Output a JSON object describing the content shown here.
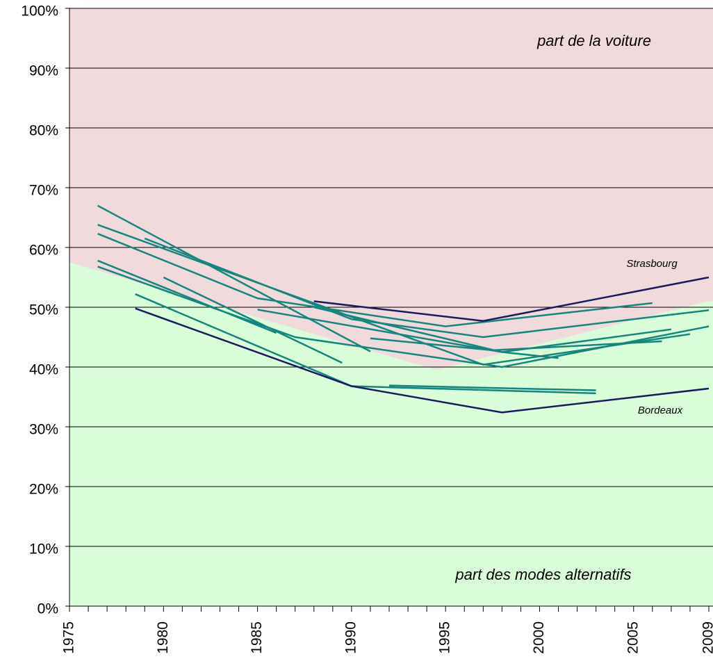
{
  "chart_data": {
    "type": "line",
    "annotations": [
      "part de la voiture",
      "part des modes alternatifs"
    ],
    "xlim": [
      1975,
      2009
    ],
    "ylim": [
      0,
      100
    ],
    "xticks": [
      1975,
      1980,
      1985,
      1990,
      1995,
      2000,
      2005,
      2009
    ],
    "xminor_ticks": [
      1975,
      1976,
      1977,
      1978,
      1979,
      1980,
      1981,
      1982,
      1983,
      1984,
      1985,
      1986,
      1987,
      1988,
      1989,
      1990,
      1991,
      1992,
      1993,
      1994,
      1995,
      1996,
      1997,
      1998,
      1999,
      2000,
      2001,
      2002,
      2003,
      2004,
      2005,
      2006,
      2007,
      2008,
      2009
    ],
    "yticks": [
      {
        "value": 0,
        "label": "0%"
      },
      {
        "value": 10,
        "label": "10%"
      },
      {
        "value": 20,
        "label": "20%"
      },
      {
        "value": 30,
        "label": "30%"
      },
      {
        "value": 40,
        "label": "40%"
      },
      {
        "value": 50,
        "label": "50%"
      },
      {
        "value": 60,
        "label": "60%"
      },
      {
        "value": 70,
        "label": "70%"
      },
      {
        "value": 80,
        "label": "80%"
      },
      {
        "value": 90,
        "label": "90%"
      },
      {
        "value": 100,
        "label": "100%"
      }
    ],
    "grid": true,
    "area_colors": {
      "upper": "#f0dadb",
      "lower": "#d9fdd9"
    },
    "boundary": {
      "x": [
        1975,
        1994.5,
        2009
      ],
      "values": [
        57.5,
        39.5,
        51
      ]
    },
    "series": [
      {
        "color": "#14857f",
        "x": [
          1976.5,
          1991
        ],
        "values": [
          67,
          42.6
        ]
      },
      {
        "color": "#14857f",
        "x": [
          1976.5,
          1997,
          2008
        ],
        "values": [
          63.8,
          40.4,
          45.5
        ]
      },
      {
        "color": "#14857f",
        "x": [
          1976.5,
          1985,
          1995,
          2006
        ],
        "values": [
          62.3,
          51.5,
          46.8,
          50.7
        ]
      },
      {
        "color": "#14857f",
        "x": [
          1976.5,
          1986
        ],
        "values": [
          57.8,
          45.7
        ]
      },
      {
        "color": "#14857f",
        "x": [
          1976.5,
          1987,
          1998,
          2009
        ],
        "values": [
          56.8,
          45,
          40,
          46.8
        ]
      },
      {
        "color": "#14857f",
        "x": [
          1978.5,
          1990,
          2003
        ],
        "values": [
          52.2,
          36.8,
          35.6
        ]
      },
      {
        "color": "#14857f",
        "x": [
          1979,
          1990,
          1997,
          2009
        ],
        "values": [
          61.5,
          48,
          45,
          49.5
        ]
      },
      {
        "color": "#14857f",
        "x": [
          1980,
          1989.5
        ],
        "values": [
          55,
          40.7
        ]
      },
      {
        "color": "#14857f",
        "x": [
          1985,
          1998,
          2001
        ],
        "values": [
          49.6,
          42.5,
          41.5
        ]
      },
      {
        "color": "#14857f",
        "x": [
          1991,
          1997.5,
          2006.5
        ],
        "values": [
          44.8,
          42.8,
          44.3
        ]
      },
      {
        "color": "#14857f",
        "x": [
          1992,
          2003
        ],
        "values": [
          36.9,
          36.1
        ]
      },
      {
        "color": "#14857f",
        "x": [
          1988,
          1998,
          2007
        ],
        "values": [
          50,
          42.5,
          46.3
        ]
      },
      {
        "name": "Strasbourg",
        "color": "#1a1a60",
        "x": [
          1988,
          1997,
          2009
        ],
        "values": [
          51,
          47.7,
          55
        ]
      },
      {
        "name": "Bordeaux",
        "color": "#1a1a60",
        "x": [
          1978.5,
          1990,
          1998,
          2009
        ],
        "values": [
          49.8,
          36.8,
          32.4,
          36.4
        ]
      }
    ]
  }
}
